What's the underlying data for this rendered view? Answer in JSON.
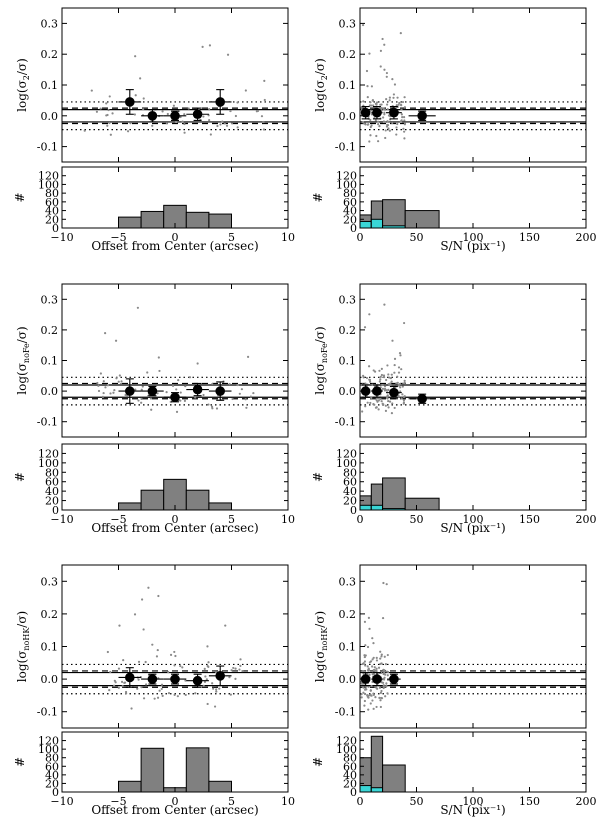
{
  "colors": {
    "bar_gray": "#808080",
    "bar_cyan": "#3ad6d6",
    "point_gray": "#8a8a8a",
    "ink": "#000000"
  },
  "chart_data": [
    {
      "id": "r0c0",
      "type": "scatter",
      "ylabel_main": "log(σ",
      "ylabel_sub": "2",
      "ylabel_end": "/σ)",
      "xlim": [
        -10,
        10
      ],
      "ylim": [
        -0.15,
        0.35
      ],
      "yticks": [
        -0.1,
        0.0,
        0.1,
        0.2,
        0.3
      ],
      "solid_lines": [
        0.02,
        -0.02
      ],
      "dashed_lines": [
        0.025,
        -0.025
      ],
      "dotted_lines": [
        0.045,
        -0.045
      ],
      "binned_points": [
        {
          "x": -4,
          "y": 0.045,
          "xerr": 1.0,
          "yerr": 0.04
        },
        {
          "x": -2,
          "y": 0.0,
          "xerr": 1.0,
          "yerr": 0.02
        },
        {
          "x": 0,
          "y": 0.0,
          "xerr": 1.0,
          "yerr": 0.015
        },
        {
          "x": 2,
          "y": 0.005,
          "xerr": 1.0,
          "yerr": 0.02
        },
        {
          "x": 4,
          "y": 0.045,
          "xerr": 1.0,
          "yerr": 0.04
        }
      ],
      "scatter_seed": 11,
      "scatter_n": 70,
      "scatter_xrange": [
        -8,
        8
      ],
      "scatter_spread": 0.045
    },
    {
      "id": "h0c0",
      "type": "bar",
      "xlabel": "Offset from Center (arcsec)",
      "xlim": [
        -10,
        10
      ],
      "ylim": [
        0,
        140
      ],
      "xticks": [
        -10,
        -5,
        0,
        5,
        10
      ],
      "yticks": [
        0,
        20,
        40,
        60,
        80,
        100,
        120
      ],
      "bins": [
        [
          -5,
          -3
        ],
        [
          -3,
          -1
        ],
        [
          -1,
          1
        ],
        [
          1,
          3
        ],
        [
          3,
          5
        ]
      ],
      "values": [
        25,
        38,
        52,
        36,
        32
      ],
      "cyan_values": []
    },
    {
      "id": "r0c1",
      "type": "scatter",
      "ylabel_main": "log(σ",
      "ylabel_sub": "2",
      "ylabel_end": "/σ)",
      "xlim": [
        0,
        200
      ],
      "ylim": [
        -0.15,
        0.35
      ],
      "yticks": [
        -0.1,
        0.0,
        0.1,
        0.2,
        0.3
      ],
      "solid_lines": [
        0.02,
        -0.02
      ],
      "dashed_lines": [
        0.025,
        -0.025
      ],
      "dotted_lines": [
        0.045,
        -0.045
      ],
      "binned_points": [
        {
          "x": 5,
          "y": 0.01,
          "xerr": 3,
          "yerr": 0.02
        },
        {
          "x": 15,
          "y": 0.01,
          "xerr": 5,
          "yerr": 0.02
        },
        {
          "x": 30,
          "y": 0.01,
          "xerr": 7,
          "yerr": 0.02
        },
        {
          "x": 55,
          "y": 0.0,
          "xerr": 12,
          "yerr": 0.015
        }
      ],
      "scatter_seed": 22,
      "scatter_n": 130,
      "scatter_xrange": [
        1,
        40
      ],
      "scatter_spread": 0.05
    },
    {
      "id": "h0c1",
      "type": "bar",
      "xlabel": "S/N (pix⁻¹)",
      "xlim": [
        0,
        200
      ],
      "ylim": [
        0,
        140
      ],
      "xticks": [
        0,
        50,
        100,
        150,
        200
      ],
      "yticks": [
        0,
        20,
        40,
        60,
        80,
        100,
        120
      ],
      "bins": [
        [
          0,
          10
        ],
        [
          10,
          20
        ],
        [
          20,
          40
        ],
        [
          40,
          70
        ]
      ],
      "values": [
        30,
        62,
        65,
        40
      ],
      "cyan_values": [
        15,
        20,
        5,
        0
      ]
    },
    {
      "id": "r1c0",
      "type": "scatter",
      "ylabel_main": "log(σ",
      "ylabel_sub": "noFe",
      "ylabel_end": "/σ)",
      "xlim": [
        -10,
        10
      ],
      "ylim": [
        -0.15,
        0.35
      ],
      "yticks": [
        -0.1,
        0.0,
        0.1,
        0.2,
        0.3
      ],
      "solid_lines": [
        0.02,
        -0.02
      ],
      "dashed_lines": [
        0.025,
        -0.025
      ],
      "dotted_lines": [
        0.045,
        -0.045
      ],
      "binned_points": [
        {
          "x": -4,
          "y": 0.0,
          "xerr": 1.0,
          "yerr": 0.04
        },
        {
          "x": -2,
          "y": 0.0,
          "xerr": 1.0,
          "yerr": 0.015
        },
        {
          "x": 0,
          "y": -0.02,
          "xerr": 1.0,
          "yerr": 0.015
        },
        {
          "x": 2,
          "y": 0.005,
          "xerr": 1.0,
          "yerr": 0.02
        },
        {
          "x": 4,
          "y": 0.0,
          "xerr": 1.0,
          "yerr": 0.03
        }
      ],
      "scatter_seed": 33,
      "scatter_n": 75,
      "scatter_xrange": [
        -7,
        7
      ],
      "scatter_spread": 0.045
    },
    {
      "id": "h1c0",
      "type": "bar",
      "xlabel": "Offset from Center (arcsec)",
      "xlim": [
        -10,
        10
      ],
      "ylim": [
        0,
        140
      ],
      "xticks": [
        -10,
        -5,
        0,
        5,
        10
      ],
      "yticks": [
        0,
        20,
        40,
        60,
        80,
        100,
        120
      ],
      "bins": [
        [
          -5,
          -3
        ],
        [
          -3,
          -1
        ],
        [
          -1,
          1
        ],
        [
          1,
          3
        ],
        [
          3,
          5
        ]
      ],
      "values": [
        15,
        42,
        65,
        42,
        15
      ],
      "cyan_values": []
    },
    {
      "id": "r1c1",
      "type": "scatter",
      "ylabel_main": "log(σ",
      "ylabel_sub": "noFe",
      "ylabel_end": "/σ)",
      "xlim": [
        0,
        200
      ],
      "ylim": [
        -0.15,
        0.35
      ],
      "yticks": [
        -0.1,
        0.0,
        0.1,
        0.2,
        0.3
      ],
      "solid_lines": [
        0.02,
        -0.02
      ],
      "dashed_lines": [
        0.025,
        -0.025
      ],
      "dotted_lines": [
        0.045,
        -0.045
      ],
      "binned_points": [
        {
          "x": 5,
          "y": 0.0,
          "xerr": 3,
          "yerr": 0.02
        },
        {
          "x": 15,
          "y": 0.0,
          "xerr": 5,
          "yerr": 0.02
        },
        {
          "x": 30,
          "y": -0.005,
          "xerr": 7,
          "yerr": 0.02
        },
        {
          "x": 55,
          "y": -0.025,
          "xerr": 12,
          "yerr": 0.015
        }
      ],
      "scatter_seed": 44,
      "scatter_n": 140,
      "scatter_xrange": [
        1,
        40
      ],
      "scatter_spread": 0.05
    },
    {
      "id": "h1c1",
      "type": "bar",
      "xlabel": "S/N (pix⁻¹)",
      "xlim": [
        0,
        200
      ],
      "ylim": [
        0,
        140
      ],
      "xticks": [
        0,
        50,
        100,
        150,
        200
      ],
      "yticks": [
        0,
        20,
        40,
        60,
        80,
        100,
        120
      ],
      "bins": [
        [
          0,
          10
        ],
        [
          10,
          20
        ],
        [
          20,
          40
        ],
        [
          40,
          70
        ]
      ],
      "values": [
        30,
        55,
        68,
        25
      ],
      "cyan_values": [
        10,
        10,
        3,
        0
      ]
    },
    {
      "id": "r2c0",
      "type": "scatter",
      "ylabel_main": "log(σ",
      "ylabel_sub": "noHK",
      "ylabel_end": "/σ)",
      "xlim": [
        -10,
        10
      ],
      "ylim": [
        -0.15,
        0.35
      ],
      "yticks": [
        -0.1,
        0.0,
        0.1,
        0.2,
        0.3
      ],
      "solid_lines": [
        0.02,
        -0.02
      ],
      "dashed_lines": [
        0.025,
        -0.025
      ],
      "dotted_lines": [
        0.045,
        -0.045
      ],
      "binned_points": [
        {
          "x": -4,
          "y": 0.005,
          "xerr": 1.0,
          "yerr": 0.03
        },
        {
          "x": -2,
          "y": 0.0,
          "xerr": 1.0,
          "yerr": 0.015
        },
        {
          "x": 0,
          "y": 0.0,
          "xerr": 1.0,
          "yerr": 0.015
        },
        {
          "x": 2,
          "y": -0.005,
          "xerr": 1.0,
          "yerr": 0.02
        },
        {
          "x": 4,
          "y": 0.01,
          "xerr": 1.0,
          "yerr": 0.03
        }
      ],
      "scatter_seed": 55,
      "scatter_n": 90,
      "scatter_xrange": [
        -6,
        6
      ],
      "scatter_spread": 0.06
    },
    {
      "id": "h2c0",
      "type": "bar",
      "xlabel": "Offset from Center (arcsec)",
      "xlim": [
        -10,
        10
      ],
      "ylim": [
        0,
        140
      ],
      "xticks": [
        -10,
        -5,
        0,
        5,
        10
      ],
      "yticks": [
        0,
        20,
        40,
        60,
        80,
        100,
        120
      ],
      "bins": [
        [
          -5,
          -3
        ],
        [
          -3,
          -1
        ],
        [
          -1,
          1
        ],
        [
          1,
          3
        ],
        [
          3,
          5
        ]
      ],
      "values": [
        25,
        102,
        10,
        103,
        25
      ],
      "cyan_values": []
    },
    {
      "id": "r2c1",
      "type": "scatter",
      "ylabel_main": "log(σ",
      "ylabel_sub": "noHK",
      "ylabel_end": "/σ)",
      "xlim": [
        0,
        200
      ],
      "ylim": [
        -0.15,
        0.35
      ],
      "yticks": [
        -0.1,
        0.0,
        0.1,
        0.2,
        0.3
      ],
      "solid_lines": [
        0.02,
        -0.02
      ],
      "dashed_lines": [
        0.025,
        -0.025
      ],
      "dotted_lines": [
        0.045,
        -0.045
      ],
      "binned_points": [
        {
          "x": 5,
          "y": 0.0,
          "xerr": 3,
          "yerr": 0.02
        },
        {
          "x": 15,
          "y": 0.0,
          "xerr": 5,
          "yerr": 0.02
        },
        {
          "x": 30,
          "y": 0.0,
          "xerr": 6,
          "yerr": 0.015
        }
      ],
      "scatter_seed": 66,
      "scatter_n": 160,
      "scatter_xrange": [
        1,
        25
      ],
      "scatter_spread": 0.06
    },
    {
      "id": "h2c1",
      "type": "bar",
      "xlabel": "S/N (pix⁻¹)",
      "xlim": [
        0,
        200
      ],
      "ylim": [
        0,
        140
      ],
      "xticks": [
        0,
        50,
        100,
        150,
        200
      ],
      "yticks": [
        0,
        20,
        40,
        60,
        80,
        100,
        120
      ],
      "bins": [
        [
          0,
          10
        ],
        [
          10,
          20
        ],
        [
          20,
          40
        ]
      ],
      "values": [
        80,
        130,
        63
      ],
      "cyan_values": [
        15,
        10,
        0
      ]
    }
  ],
  "hist_ylabel": "#"
}
